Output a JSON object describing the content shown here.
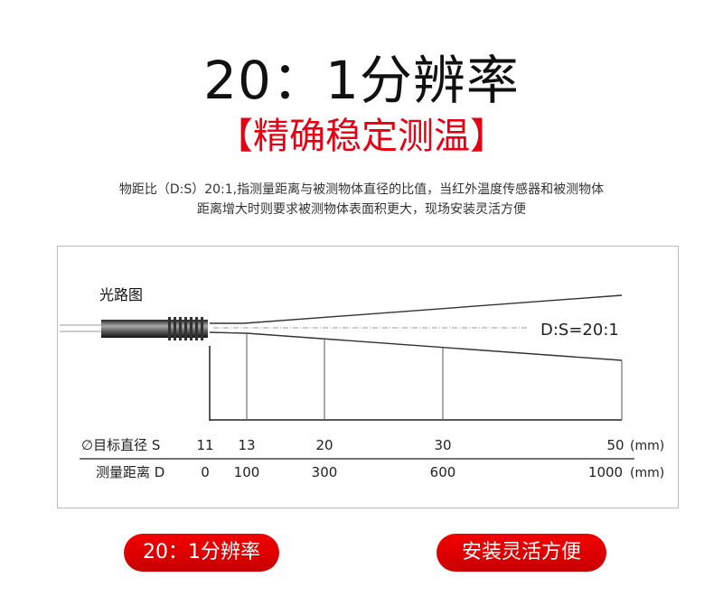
{
  "header": {
    "title": "20：1分辨率",
    "subtitle": "【精确稳定测温】"
  },
  "description": [
    "物距比（D:S）20:1,指测量距离与被测物体直径的比值，当红外温度传感器和被测物体",
    "距离增大时则要求被测物体表面积更大，现场安装灵活方便"
  ],
  "diagram": {
    "title": "光路图",
    "ratio_label": "D:S=20:1",
    "row_s_label": "∅目标直径 S",
    "row_d_label": "测量距离 D",
    "unit": "(mm)",
    "target_diameter_s": [
      "11",
      "13",
      "20",
      "30",
      "50"
    ],
    "distance_d": [
      "0",
      "100",
      "300",
      "600",
      "1000"
    ]
  },
  "badges": [
    "20：1分辨率",
    "安装灵活方便"
  ],
  "colors": {
    "accent": "#e60012",
    "badge": "#e00000"
  }
}
